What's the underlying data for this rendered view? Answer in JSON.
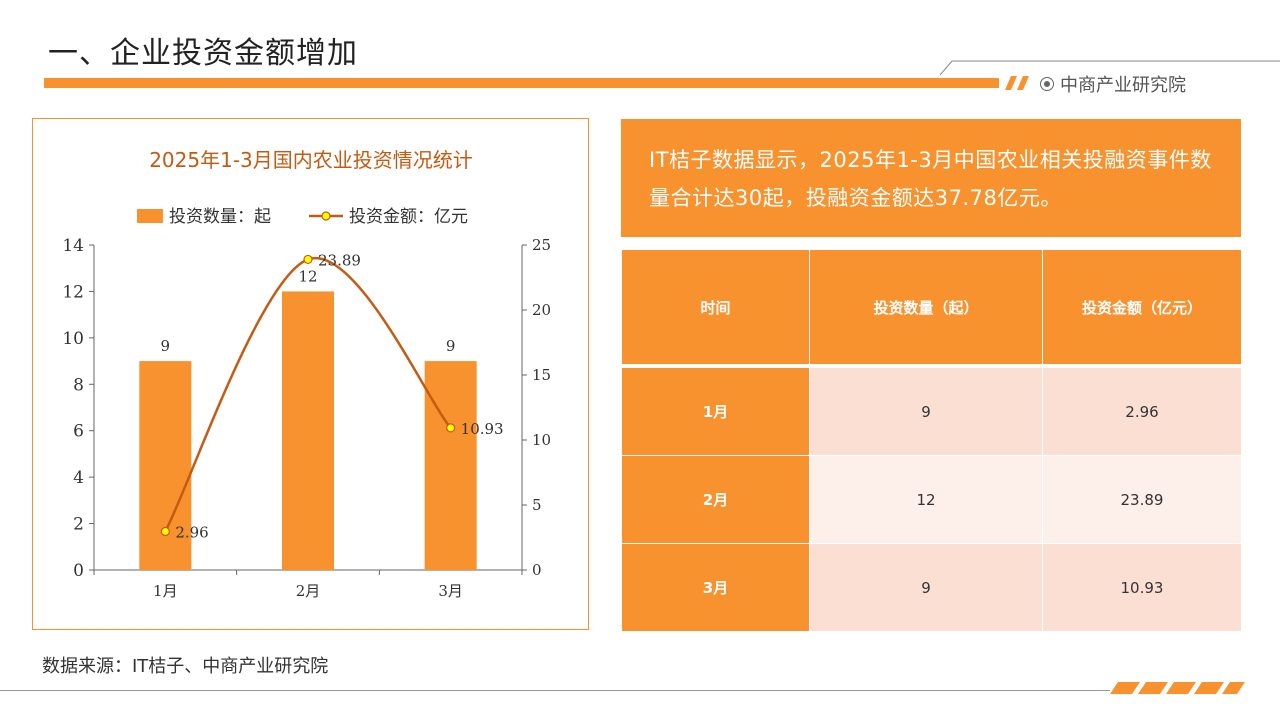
{
  "page": {
    "title": "一、企业投资金额增加",
    "brand": "中商产业研究院",
    "source": "数据来源：IT桔子、中商产业研究院"
  },
  "description": "IT桔子数据显示，2025年1-3月中国农业相关投融资事件数量合计达30起，投融资金额达37.78亿元。",
  "table": {
    "headers": [
      "时间",
      "投资数量（起）",
      "投资金额（亿元）"
    ],
    "rows": [
      [
        "1月",
        "9",
        "2.96"
      ],
      [
        "2月",
        "12",
        "23.89"
      ],
      [
        "3月",
        "9",
        "10.93"
      ]
    ]
  },
  "colors": {
    "accent": "#f7922f",
    "line": "#c55a11",
    "marker": "#ffff00",
    "row_odd": "#fcdfd3",
    "row_even": "#fdefe9"
  },
  "chart_data": {
    "type": "bar+line",
    "title": "2025年1-3月国内农业投资情况统计",
    "categories": [
      "1月",
      "2月",
      "3月"
    ],
    "series": [
      {
        "name": "投资数量：起",
        "type": "bar",
        "axis": "left",
        "values": [
          9,
          12,
          9
        ],
        "labels": [
          "9",
          "12",
          "9"
        ]
      },
      {
        "name": "投资金额：亿元",
        "type": "line",
        "axis": "right",
        "values": [
          2.96,
          23.89,
          10.93
        ],
        "labels": [
          "2.96",
          "23.89",
          "10.93"
        ]
      }
    ],
    "y_left": {
      "range": [
        0,
        14
      ],
      "ticks": [
        "0",
        "2",
        "4",
        "6",
        "8",
        "10",
        "12",
        "14"
      ]
    },
    "y_right": {
      "range": [
        0,
        25
      ],
      "ticks": [
        "0",
        "5",
        "10",
        "15",
        "20",
        "25"
      ]
    },
    "legend_position": "top",
    "grid": false
  }
}
